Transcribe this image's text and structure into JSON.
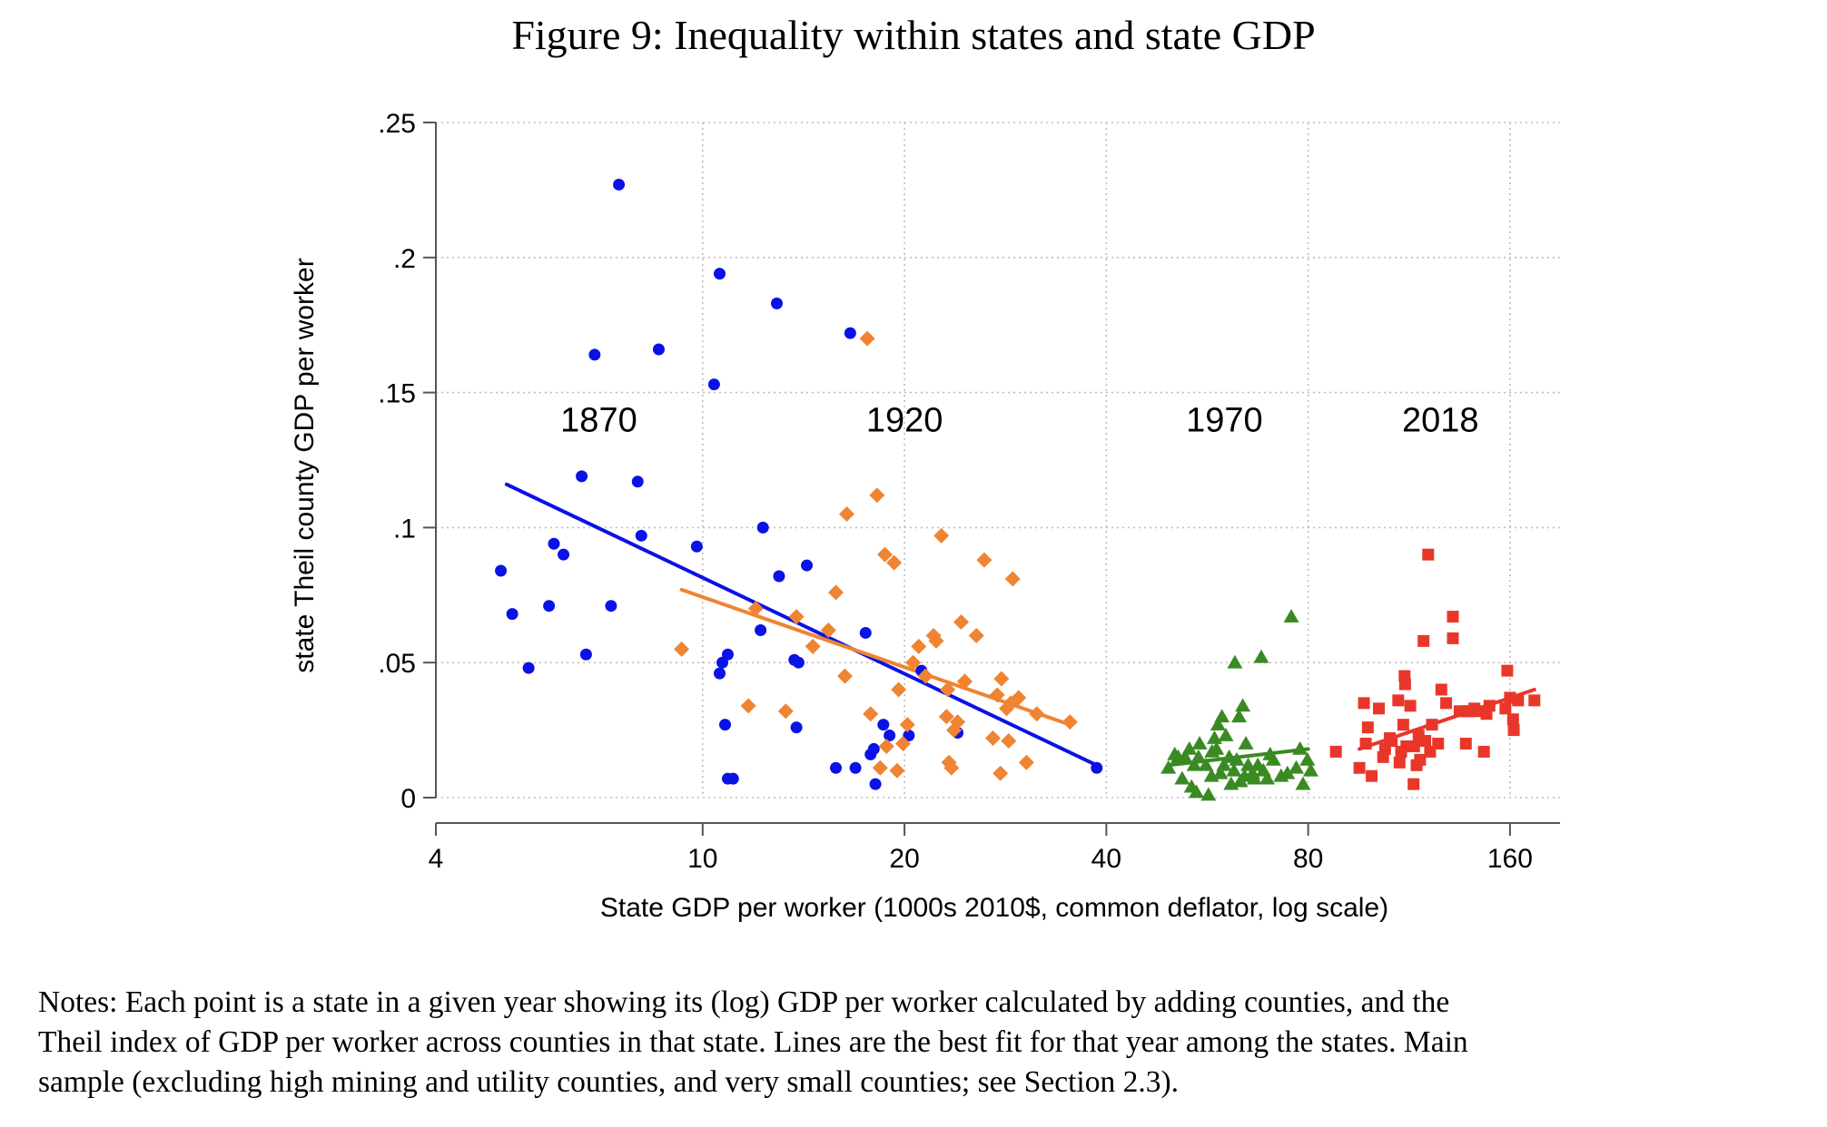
{
  "title": "Figure 9: Inequality within states and state GDP",
  "notes_lines": [
    "Notes: Each point is a state in a given year showing its (log) GDP per worker calculated by adding counties, and the",
    "Theil index of GDP per worker across counties in that state. Lines are the best fit for that year among the states. Main",
    "sample (excluding high mining and utility counties, and very small counties; see Section 2.3)."
  ],
  "colors": {
    "1870": "#0b12e6",
    "1920": "#ef8432",
    "1970": "#3a8a24",
    "2018": "#e8372a",
    "grid": "#bdbdbd",
    "axis": "#555555"
  },
  "chart_data": {
    "type": "scatter",
    "title": "Figure 9: Inequality within states and state GDP",
    "xlabel": "State GDP per worker (1000s 2010$, common deflator, log scale)",
    "ylabel": "state Theil county GDP per worker",
    "x_scale": "log",
    "xlim": [
      4,
      190
    ],
    "ylim": [
      0,
      0.25
    ],
    "x_ticks": [
      4,
      10,
      20,
      40,
      80,
      160
    ],
    "x_tick_labels": [
      "4",
      "10",
      "20",
      "40",
      "80",
      "160"
    ],
    "y_ticks": [
      0,
      0.05,
      0.1,
      0.15,
      0.2,
      0.25
    ],
    "y_tick_labels": [
      "0",
      ".05",
      ".1",
      ".15",
      ".2",
      ".25"
    ],
    "grid": true,
    "legend": "none",
    "annotations": [
      {
        "text": "1870",
        "x": 7.0,
        "y": 0.14
      },
      {
        "text": "1920",
        "x": 20.0,
        "y": 0.14
      },
      {
        "text": "1970",
        "x": 60.0,
        "y": 0.14
      },
      {
        "text": "2018",
        "x": 126.0,
        "y": 0.14
      }
    ],
    "series": [
      {
        "name": "1870",
        "marker": "circle",
        "color": "#0b12e6",
        "fit": [
          [
            5.1,
            0.116
          ],
          [
            38.7,
            0.012
          ]
        ],
        "points": [
          [
            5.0,
            0.084
          ],
          [
            5.2,
            0.068
          ],
          [
            5.5,
            0.048
          ],
          [
            5.9,
            0.071
          ],
          [
            6.0,
            0.094
          ],
          [
            6.2,
            0.09
          ],
          [
            6.6,
            0.119
          ],
          [
            6.7,
            0.053
          ],
          [
            6.9,
            0.164
          ],
          [
            7.3,
            0.071
          ],
          [
            7.5,
            0.227
          ],
          [
            8.0,
            0.117
          ],
          [
            8.1,
            0.097
          ],
          [
            8.6,
            0.166
          ],
          [
            9.8,
            0.093
          ],
          [
            10.4,
            0.153
          ],
          [
            10.6,
            0.194
          ],
          [
            10.6,
            0.046
          ],
          [
            10.7,
            0.05
          ],
          [
            10.8,
            0.027
          ],
          [
            10.9,
            0.053
          ],
          [
            10.9,
            0.007
          ],
          [
            11.1,
            0.007
          ],
          [
            12.2,
            0.062
          ],
          [
            12.3,
            0.1
          ],
          [
            12.9,
            0.183
          ],
          [
            13.0,
            0.082
          ],
          [
            13.7,
            0.051
          ],
          [
            13.8,
            0.026
          ],
          [
            13.9,
            0.05
          ],
          [
            14.3,
            0.086
          ],
          [
            15.8,
            0.011
          ],
          [
            16.6,
            0.172
          ],
          [
            16.9,
            0.011
          ],
          [
            17.5,
            0.061
          ],
          [
            17.8,
            0.016
          ],
          [
            18.0,
            0.018
          ],
          [
            18.1,
            0.005
          ],
          [
            18.6,
            0.027
          ],
          [
            19.0,
            0.023
          ],
          [
            20.3,
            0.023
          ],
          [
            21.2,
            0.047
          ],
          [
            24.0,
            0.024
          ],
          [
            38.7,
            0.011
          ]
        ]
      },
      {
        "name": "1920",
        "marker": "diamond",
        "color": "#ef8432",
        "fit": [
          [
            9.3,
            0.077
          ],
          [
            35.3,
            0.027
          ]
        ],
        "points": [
          [
            9.3,
            0.055
          ],
          [
            11.7,
            0.034
          ],
          [
            12.0,
            0.07
          ],
          [
            13.3,
            0.032
          ],
          [
            13.8,
            0.067
          ],
          [
            14.6,
            0.056
          ],
          [
            15.4,
            0.062
          ],
          [
            15.8,
            0.076
          ],
          [
            16.3,
            0.045
          ],
          [
            16.4,
            0.105
          ],
          [
            17.8,
            0.031
          ],
          [
            17.6,
            0.17
          ],
          [
            18.2,
            0.112
          ],
          [
            18.4,
            0.011
          ],
          [
            18.8,
            0.019
          ],
          [
            18.7,
            0.09
          ],
          [
            19.3,
            0.087
          ],
          [
            19.5,
            0.01
          ],
          [
            19.9,
            0.02
          ],
          [
            19.6,
            0.04
          ],
          [
            20.2,
            0.027
          ],
          [
            20.6,
            0.05
          ],
          [
            21.0,
            0.056
          ],
          [
            21.5,
            0.045
          ],
          [
            22.1,
            0.06
          ],
          [
            22.3,
            0.058
          ],
          [
            22.7,
            0.097
          ],
          [
            23.1,
            0.03
          ],
          [
            23.2,
            0.04
          ],
          [
            23.3,
            0.013
          ],
          [
            23.5,
            0.011
          ],
          [
            23.7,
            0.025
          ],
          [
            24.0,
            0.028
          ],
          [
            24.3,
            0.065
          ],
          [
            24.6,
            0.043
          ],
          [
            24.6,
            0.043
          ],
          [
            25.6,
            0.06
          ],
          [
            26.3,
            0.088
          ],
          [
            27.1,
            0.022
          ],
          [
            27.5,
            0.038
          ],
          [
            27.8,
            0.009
          ],
          [
            27.9,
            0.044
          ],
          [
            28.4,
            0.033
          ],
          [
            28.6,
            0.021
          ],
          [
            28.8,
            0.035
          ],
          [
            29.0,
            0.081
          ],
          [
            29.6,
            0.037
          ],
          [
            30.4,
            0.013
          ],
          [
            31.5,
            0.031
          ],
          [
            35.3,
            0.028
          ]
        ]
      },
      {
        "name": "1970",
        "marker": "triangle",
        "color": "#3a8a24",
        "fit": [
          [
            49.5,
            0.012
          ],
          [
            80.0,
            0.018
          ]
        ],
        "points": [
          [
            49.5,
            0.011
          ],
          [
            50.6,
            0.016
          ],
          [
            51.2,
            0.015
          ],
          [
            51.9,
            0.007
          ],
          [
            52.4,
            0.015
          ],
          [
            53.2,
            0.018
          ],
          [
            53.6,
            0.004
          ],
          [
            54.1,
            0.012
          ],
          [
            54.5,
            0.002
          ],
          [
            54.9,
            0.015
          ],
          [
            55.1,
            0.02
          ],
          [
            56.3,
            0.012
          ],
          [
            56.8,
            0.001
          ],
          [
            57.4,
            0.008
          ],
          [
            57.5,
            0.017
          ],
          [
            58.0,
            0.022
          ],
          [
            58.4,
            0.018
          ],
          [
            58.7,
            0.027
          ],
          [
            59.2,
            0.009
          ],
          [
            59.5,
            0.03
          ],
          [
            59.9,
            0.012
          ],
          [
            60.3,
            0.023
          ],
          [
            61.0,
            0.015
          ],
          [
            61.4,
            0.005
          ],
          [
            62.0,
            0.01
          ],
          [
            62.2,
            0.05
          ],
          [
            62.6,
            0.014
          ],
          [
            63.1,
            0.03
          ],
          [
            63.4,
            0.006
          ],
          [
            63.9,
            0.034
          ],
          [
            64.3,
            0.008
          ],
          [
            64.6,
            0.02
          ],
          [
            65.1,
            0.012
          ],
          [
            66.1,
            0.009
          ],
          [
            66.5,
            0.007
          ],
          [
            67.3,
            0.012
          ],
          [
            68.1,
            0.052
          ],
          [
            68.6,
            0.01
          ],
          [
            69.5,
            0.007
          ],
          [
            70.2,
            0.016
          ],
          [
            71.0,
            0.014
          ],
          [
            72.9,
            0.008
          ],
          [
            74.5,
            0.009
          ],
          [
            75.5,
            0.067
          ],
          [
            76.8,
            0.011
          ],
          [
            77.8,
            0.018
          ],
          [
            78.6,
            0.005
          ],
          [
            79.8,
            0.014
          ],
          [
            80.7,
            0.01
          ]
        ]
      },
      {
        "name": "2018",
        "marker": "square",
        "color": "#e8372a",
        "fit": [
          [
            95.4,
            0.018
          ],
          [
            174.0,
            0.04
          ]
        ],
        "points": [
          [
            88.0,
            0.017
          ],
          [
            95.4,
            0.011
          ],
          [
            96.9,
            0.035
          ],
          [
            97.5,
            0.02
          ],
          [
            98.2,
            0.026
          ],
          [
            99.5,
            0.008
          ],
          [
            102.0,
            0.033
          ],
          [
            103.5,
            0.015
          ],
          [
            104.2,
            0.018
          ],
          [
            105.9,
            0.022
          ],
          [
            106.6,
            0.021
          ],
          [
            109.0,
            0.036
          ],
          [
            109.5,
            0.013
          ],
          [
            110.1,
            0.017
          ],
          [
            110.9,
            0.027
          ],
          [
            111.4,
            0.045
          ],
          [
            111.6,
            0.042
          ],
          [
            112.1,
            0.019
          ],
          [
            113.6,
            0.034
          ],
          [
            114.9,
            0.005
          ],
          [
            115.1,
            0.019
          ],
          [
            116.1,
            0.012
          ],
          [
            116.9,
            0.023
          ],
          [
            117.5,
            0.014
          ],
          [
            118.9,
            0.058
          ],
          [
            119.6,
            0.021
          ],
          [
            120.8,
            0.09
          ],
          [
            121.6,
            0.017
          ],
          [
            122.4,
            0.027
          ],
          [
            125.0,
            0.02
          ],
          [
            126.4,
            0.04
          ],
          [
            128.5,
            0.035
          ],
          [
            131.5,
            0.067
          ],
          [
            131.5,
            0.059
          ],
          [
            134.6,
            0.032
          ],
          [
            137.5,
            0.02
          ],
          [
            138.3,
            0.032
          ],
          [
            139.4,
            0.032
          ],
          [
            141.6,
            0.033
          ],
          [
            144.0,
            0.032
          ],
          [
            146.3,
            0.017
          ],
          [
            147.6,
            0.031
          ],
          [
            149.1,
            0.034
          ],
          [
            157.5,
            0.033
          ],
          [
            158.5,
            0.047
          ],
          [
            160.0,
            0.037
          ],
          [
            161.7,
            0.029
          ],
          [
            162.1,
            0.025
          ],
          [
            164.5,
            0.036
          ],
          [
            174.0,
            0.036
          ]
        ]
      }
    ]
  }
}
